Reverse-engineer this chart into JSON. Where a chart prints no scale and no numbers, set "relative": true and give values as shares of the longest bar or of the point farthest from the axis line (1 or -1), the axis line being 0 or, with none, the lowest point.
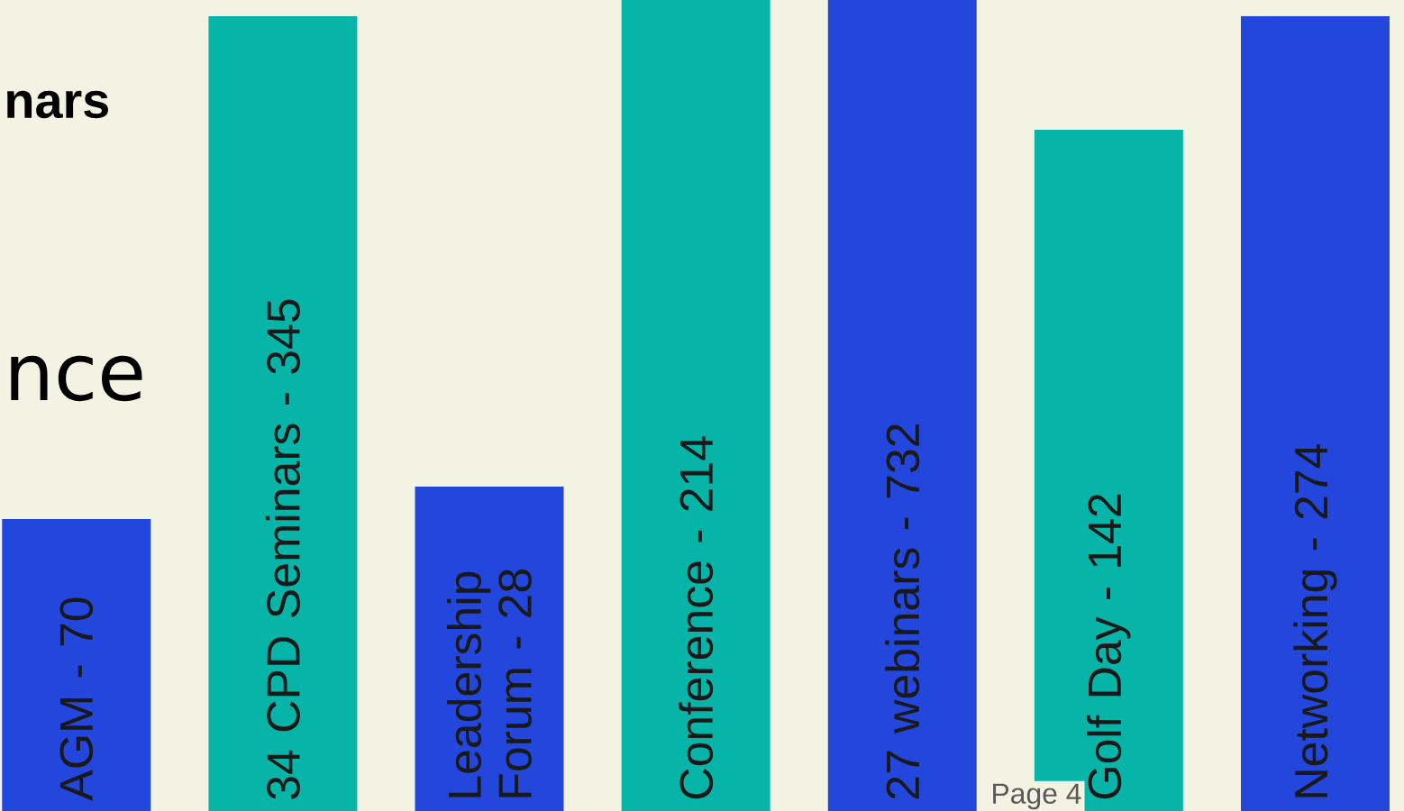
{
  "chart_data": {
    "type": "bar",
    "relative": true,
    "categories": [
      "AGM - 70",
      "34 CPD Seminars - 345",
      "Leadership Forum - 28",
      "Conference - 214",
      "27 webinars -  732",
      "Golf Day - 142",
      "Networking - 274"
    ],
    "values": [
      0.36,
      0.98,
      0.4,
      1,
      1,
      0.84,
      0.98
    ],
    "colors": [
      "#2346dc",
      "#06b4a8",
      "#2346dc",
      "#06b4a8",
      "#2346dc",
      "#06b4a8",
      "#2346dc"
    ],
    "annotations": [
      "nars",
      "nce",
      "Page 4"
    ]
  }
}
